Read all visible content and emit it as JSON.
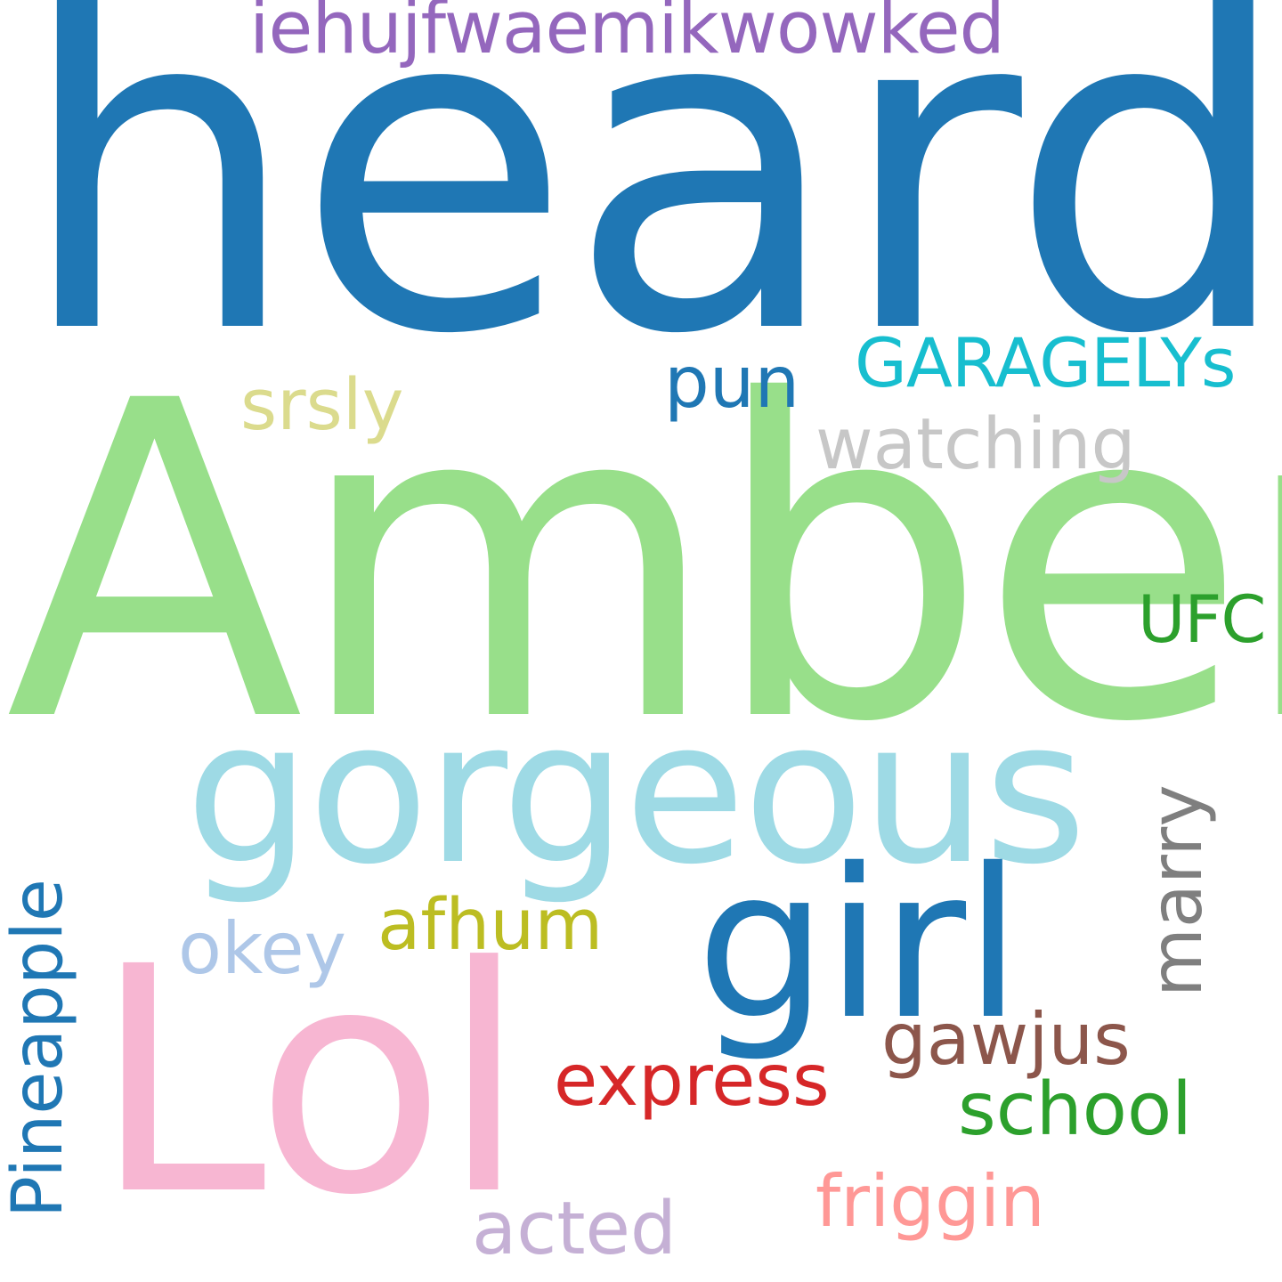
{
  "words": [
    {
      "id": "heard",
      "text": "heard",
      "color": "#1f77b4"
    },
    {
      "id": "amber",
      "text": "Amber",
      "color": "#98df8a"
    },
    {
      "id": "gorgeous",
      "text": "gorgeous",
      "color": "#9edae5"
    },
    {
      "id": "lol",
      "text": "Lol",
      "color": "#f7b6d2"
    },
    {
      "id": "girl",
      "text": "girl",
      "color": "#1f77b4"
    },
    {
      "id": "iehujfwaemikwowked",
      "text": "iehujfwaemikwowked",
      "color": "#9467bd"
    },
    {
      "id": "garagelys",
      "text": "GARAGELYs",
      "color": "#17becf"
    },
    {
      "id": "pun",
      "text": "pun",
      "color": "#1f77b4"
    },
    {
      "id": "srsly",
      "text": "srsly",
      "color": "#dbdb8d"
    },
    {
      "id": "watching",
      "text": "watching",
      "color": "#c7c7c7"
    },
    {
      "id": "ufc",
      "text": "UFC",
      "color": "#2ca02c"
    },
    {
      "id": "marry",
      "text": "marry",
      "color": "#7f7f7f"
    },
    {
      "id": "pineapple",
      "text": "Pineapple",
      "color": "#1f77b4"
    },
    {
      "id": "afhum",
      "text": "afhum",
      "color": "#bcbd22"
    },
    {
      "id": "okey",
      "text": "okey",
      "color": "#aec7e8"
    },
    {
      "id": "gawjus",
      "text": "gawjus",
      "color": "#8c564b"
    },
    {
      "id": "express",
      "text": "express",
      "color": "#d62728"
    },
    {
      "id": "school",
      "text": "school",
      "color": "#2ca02c"
    },
    {
      "id": "friggin",
      "text": "friggin",
      "color": "#ff9896"
    },
    {
      "id": "acted",
      "text": "acted",
      "color": "#c5b0d5"
    }
  ]
}
